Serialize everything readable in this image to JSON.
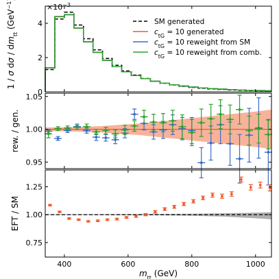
{
  "chart_data": [
    {
      "panel": "top",
      "type": "line",
      "step": true,
      "x_edges": [
        340,
        370,
        400,
        430,
        460,
        490,
        520,
        550,
        580,
        610,
        640,
        670,
        700,
        730,
        760,
        790,
        820,
        850,
        880,
        910,
        940,
        970,
        1000,
        1030,
        1050
      ],
      "xlim": [
        340,
        1050
      ],
      "ylim": [
        0,
        5.0
      ],
      "yticks": [
        0,
        2,
        4
      ],
      "scale_label": "×10⁻³",
      "ylabel": "1 / σ dσ / dm_tt (GeV⁻¹)",
      "series": [
        {
          "name": "SM generated",
          "color": "#000000",
          "style": "dashed",
          "values": [
            1.3,
            4.25,
            4.65,
            3.9,
            3.1,
            2.45,
            1.95,
            1.55,
            1.22,
            0.98,
            0.78,
            0.62,
            0.5,
            0.4,
            0.32,
            0.26,
            0.21,
            0.17,
            0.14,
            0.11,
            0.09,
            0.075,
            0.06,
            0.05
          ]
        },
        {
          "name": "c_tG = 10 generated",
          "color": "#f05a28",
          "style": "solid",
          "values": [
            1.4,
            4.4,
            4.5,
            3.72,
            2.92,
            2.3,
            1.84,
            1.47,
            1.17,
            0.95,
            0.77,
            0.62,
            0.51,
            0.41,
            0.34,
            0.28,
            0.23,
            0.19,
            0.16,
            0.13,
            0.11,
            0.09,
            0.075,
            0.062
          ]
        },
        {
          "name": "c_tG = 10 reweight from SM",
          "color": "#3a6bc9",
          "style": "solid",
          "values": [
            1.4,
            4.38,
            4.51,
            3.73,
            2.92,
            2.31,
            1.84,
            1.47,
            1.17,
            0.95,
            0.77,
            0.62,
            0.51,
            0.41,
            0.34,
            0.28,
            0.23,
            0.19,
            0.16,
            0.13,
            0.11,
            0.09,
            0.075,
            0.062
          ]
        },
        {
          "name": "c_tG = 10 reweight from comb.",
          "color": "#2ca02c",
          "style": "solid",
          "values": [
            1.4,
            4.39,
            4.5,
            3.72,
            2.92,
            2.3,
            1.84,
            1.47,
            1.17,
            0.95,
            0.77,
            0.62,
            0.51,
            0.41,
            0.34,
            0.28,
            0.23,
            0.19,
            0.16,
            0.13,
            0.11,
            0.09,
            0.075,
            0.062
          ]
        }
      ]
    },
    {
      "panel": "middle",
      "type": "scatter",
      "xlim": [
        340,
        1050
      ],
      "ylim": [
        0.94,
        1.055
      ],
      "yticks": [
        0.95,
        1.0,
        1.05
      ],
      "ytick_labels": [
        "0.95",
        "1.00",
        "1.05"
      ],
      "ylabel": "rew. / gen.",
      "reference_line": 1.0,
      "band": {
        "color": "#f7a488",
        "x": [
          340,
          400,
          460,
          520,
          580,
          640,
          700,
          760,
          820,
          880,
          940,
          1000,
          1050
        ],
        "upper": [
          1.003,
          1.003,
          1.004,
          1.005,
          1.007,
          1.009,
          1.012,
          1.015,
          1.018,
          1.021,
          1.024,
          1.027,
          1.03
        ],
        "lower": [
          0.997,
          0.997,
          0.996,
          0.995,
          0.993,
          0.991,
          0.988,
          0.985,
          0.982,
          0.979,
          0.976,
          0.973,
          0.97
        ]
      },
      "series": [
        {
          "name": "c_tG = 10 reweight from SM",
          "color": "#3a6bc9",
          "x": [
            350,
            380,
            410,
            440,
            470,
            500,
            530,
            560,
            590,
            620,
            650,
            680,
            710,
            740,
            770,
            800,
            830,
            860,
            890,
            920,
            950,
            980,
            1010,
            1040
          ],
          "y": [
            0.997,
            0.986,
            0.998,
            1.004,
            0.998,
            0.988,
            0.987,
            0.984,
            0.994,
            1.023,
            1.009,
            0.996,
            0.999,
            1.007,
            1.001,
            0.998,
            0.949,
            0.979,
            1.007,
            0.978,
            0.955,
            0.991,
            1.002,
            0.965
          ],
          "err": [
            0.003,
            0.003,
            0.003,
            0.004,
            0.004,
            0.005,
            0.005,
            0.006,
            0.007,
            0.008,
            0.01,
            0.011,
            0.013,
            0.015,
            0.017,
            0.02,
            0.023,
            0.026,
            0.029,
            0.033,
            0.037,
            0.041,
            0.046,
            0.05
          ]
        },
        {
          "name": "c_tG = 10 reweight from comb.",
          "color": "#2ca02c",
          "x": [
            350,
            380,
            410,
            440,
            470,
            500,
            530,
            560,
            590,
            620,
            650,
            680,
            710,
            740,
            770,
            800,
            830,
            860,
            890,
            920,
            950,
            980,
            1010,
            1040
          ],
          "y": [
            0.993,
            1.001,
            1.002,
            1.003,
            1.004,
            0.996,
            0.998,
            0.993,
            0.999,
            1.005,
            1.019,
            1.011,
            1.01,
            1.013,
            1.004,
            0.995,
            1.01,
            1.016,
            1.023,
            1.015,
            1.03,
            0.998,
            1.001,
            0.992
          ],
          "err": [
            0.006,
            0.003,
            0.003,
            0.003,
            0.004,
            0.004,
            0.005,
            0.006,
            0.007,
            0.008,
            0.01,
            0.012,
            0.014,
            0.016,
            0.018,
            0.02,
            0.021,
            0.022,
            0.022,
            0.022,
            0.022,
            0.022,
            0.022,
            0.022
          ]
        }
      ]
    },
    {
      "panel": "bottom",
      "type": "scatter",
      "xlim": [
        340,
        1050
      ],
      "ylim": [
        0.62,
        1.4
      ],
      "yticks": [
        0.75,
        1.0,
        1.25
      ],
      "ytick_labels": [
        "0.75",
        "1.00",
        "1.25"
      ],
      "xticks": [
        400,
        600,
        800,
        1000
      ],
      "xlabel": "m_tt (GeV)",
      "ylabel": "EFT / SM",
      "reference_line": 1.0,
      "band": {
        "color": "#a0a0a0",
        "x": [
          340,
          400,
          500,
          600,
          700,
          800,
          900,
          1000,
          1050
        ],
        "upper": [
          1.004,
          1.004,
          1.004,
          1.005,
          1.006,
          1.008,
          1.012,
          1.018,
          1.022
        ],
        "lower": [
          0.996,
          0.996,
          0.996,
          0.995,
          0.994,
          0.99,
          0.982,
          0.968,
          0.958
        ]
      },
      "series": [
        {
          "name": "EFT / SM",
          "color": "#f05a28",
          "x": [
            355,
            385,
            415,
            445,
            475,
            505,
            535,
            565,
            595,
            625,
            655,
            685,
            715,
            745,
            775,
            805,
            835,
            865,
            895,
            925,
            955,
            985,
            1015,
            1045
          ],
          "y": [
            1.085,
            1.025,
            0.965,
            0.955,
            0.94,
            0.945,
            0.955,
            0.96,
            0.975,
            0.985,
            1.0,
            1.025,
            1.05,
            1.07,
            1.095,
            1.12,
            1.15,
            1.175,
            1.165,
            1.185,
            1.315,
            1.245,
            1.265,
            1.24
          ],
          "err": [
            0.006,
            0.006,
            0.006,
            0.006,
            0.006,
            0.007,
            0.007,
            0.008,
            0.008,
            0.009,
            0.01,
            0.011,
            0.012,
            0.013,
            0.014,
            0.015,
            0.016,
            0.018,
            0.019,
            0.02,
            0.022,
            0.024,
            0.026,
            0.028
          ]
        }
      ]
    }
  ],
  "legend": {
    "placement": "top-right of top panel",
    "entries": [
      {
        "label_html": "SM generated",
        "color": "#000000",
        "style": "dashed"
      },
      {
        "label_html": "c_tG = 10 generated",
        "color": "#f05a28",
        "style": "solid"
      },
      {
        "label_html": "c_tG = 10 reweight from SM",
        "color": "#3a6bc9",
        "style": "solid"
      },
      {
        "label_html": "c_tG = 10 reweight from comb.",
        "color": "#2ca02c",
        "style": "solid"
      }
    ]
  }
}
